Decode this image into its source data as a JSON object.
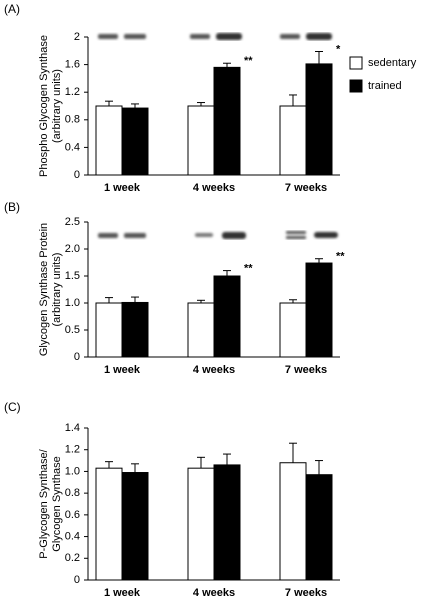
{
  "chart_data": [
    {
      "type": "bar",
      "panel_label": "(A)",
      "ylabel": [
        "Phospho Glycogen Synthase",
        "(arbitrary units)"
      ],
      "categories": [
        "1 week",
        "4 weeks",
        "7 weeks"
      ],
      "series": [
        {
          "name": "sedentary",
          "color": "#ffffff",
          "values": [
            1.0,
            1.0,
            1.0
          ],
          "errors": [
            0.07,
            0.05,
            0.16
          ]
        },
        {
          "name": "trained",
          "color": "#000000",
          "values": [
            0.97,
            1.56,
            1.61
          ],
          "errors": [
            0.06,
            0.06,
            0.18
          ],
          "annotations": [
            null,
            "**",
            "*"
          ]
        }
      ],
      "ylim": [
        0,
        2
      ],
      "yticks": [
        0,
        0.4,
        0.8,
        1.2,
        1.6,
        2
      ],
      "legend": "right"
    },
    {
      "type": "bar",
      "panel_label": "(B)",
      "ylabel": [
        "Glycogen Synthase Protein",
        "(arbitrary units)"
      ],
      "categories": [
        "1 week",
        "4 weeks",
        "7 weeks"
      ],
      "series": [
        {
          "color": "#ffffff",
          "values": [
            1.0,
            1.0,
            1.0
          ],
          "errors": [
            0.1,
            0.05,
            0.06
          ]
        },
        {
          "color": "#000000",
          "values": [
            1.01,
            1.5,
            1.74
          ],
          "errors": [
            0.1,
            0.1,
            0.08
          ],
          "annotations": [
            null,
            "**",
            "**"
          ]
        }
      ],
      "ylim": [
        0,
        2.5
      ],
      "yticks": [
        0,
        0.5,
        {
          "value": 1,
          "label": "1.0"
        },
        1.5,
        {
          "value": 2,
          "label": "2.0"
        },
        2.5
      ]
    },
    {
      "type": "bar",
      "panel_label": "(C)",
      "ylabel": [
        "P-Glycogen Synthase/",
        "Glycogen Synthase"
      ],
      "categories": [
        "1 week",
        "4 weeks",
        "7 weeks"
      ],
      "series": [
        {
          "color": "#ffffff",
          "values": [
            1.03,
            1.03,
            1.08
          ],
          "errors": [
            0.06,
            0.1,
            0.18
          ]
        },
        {
          "color": "#000000",
          "values": [
            0.99,
            1.06,
            0.97
          ],
          "errors": [
            0.08,
            0.1,
            0.13
          ]
        }
      ],
      "ylim": [
        0,
        1.4
      ],
      "yticks": [
        0,
        0.2,
        0.4,
        0.6,
        0.8,
        {
          "value": 1,
          "label": "1.0"
        },
        1.2,
        1.4
      ]
    }
  ]
}
